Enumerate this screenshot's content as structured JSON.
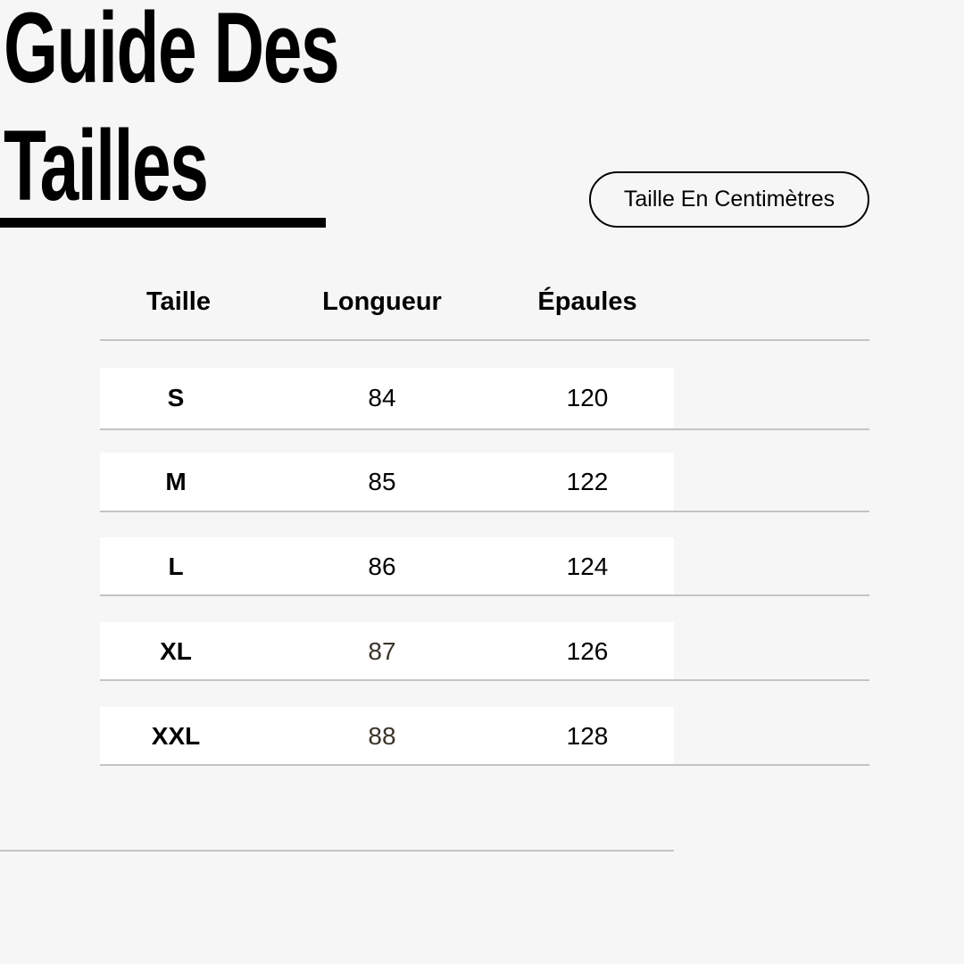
{
  "title": {
    "line1": "Guide Des",
    "line2": "Tailles"
  },
  "unit_badge": "Taille En Centimètres",
  "table": {
    "headers": [
      "Taille",
      "Longueur",
      "Épaules"
    ],
    "rows": [
      [
        "S",
        "84",
        "120"
      ],
      [
        "M",
        "85",
        "122"
      ],
      [
        "L",
        "86",
        "124"
      ],
      [
        "XL",
        "87",
        "126"
      ],
      [
        "XXL",
        "88",
        "128"
      ]
    ]
  },
  "colors": {
    "background": "#f6f6f6",
    "row": "#ffffff",
    "divider": "#c4c4c4",
    "text": "#000000",
    "muted_value": "#3b342a"
  }
}
